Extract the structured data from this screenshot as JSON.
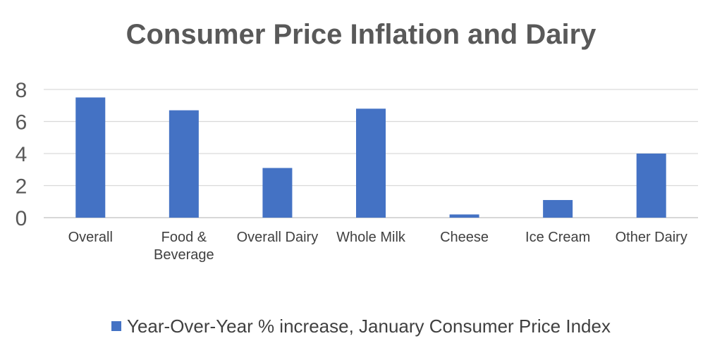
{
  "chart_data": {
    "type": "bar",
    "title": "Consumer Price Inflation and Dairy",
    "categories": [
      [
        "Overall"
      ],
      [
        "Food &",
        "Beverage"
      ],
      [
        "Overall Dairy"
      ],
      [
        "Whole Milk"
      ],
      [
        "Cheese"
      ],
      [
        "Ice Cream"
      ],
      [
        "Other Dairy"
      ]
    ],
    "series": [
      {
        "name": "Year-Over-Year % increase, January Consumer Price Index",
        "color": "#4472C4",
        "values": [
          7.5,
          6.7,
          3.1,
          6.8,
          0.2,
          1.1,
          4.0
        ]
      }
    ],
    "ylim": [
      0,
      8
    ],
    "yticks": [
      0,
      2,
      4,
      6,
      8
    ],
    "grid": true,
    "legend_position": "bottom"
  }
}
